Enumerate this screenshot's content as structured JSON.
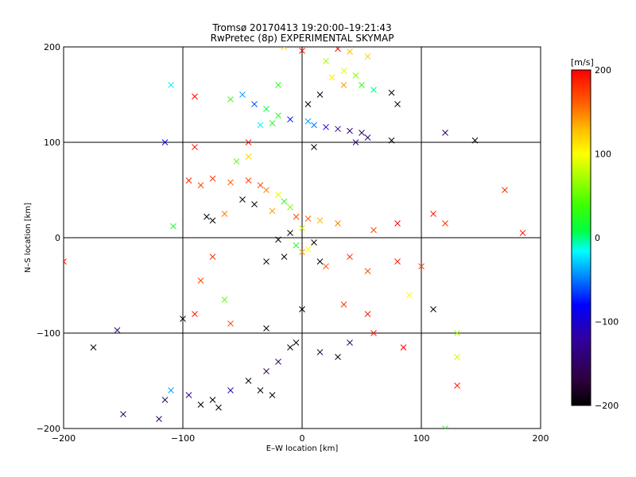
{
  "chart_data": {
    "type": "scatter",
    "title": "Tromsø 20170413 19:20:00–19:21:43",
    "subtitle": "RwPretec (8p) EXPERIMENTAL SKYMAP",
    "xlabel": "E–W location [km]",
    "ylabel": "N–S location [km]",
    "xlim": [
      -200,
      200
    ],
    "ylim": [
      -200,
      200
    ],
    "x_ticks": [
      -200,
      -100,
      0,
      100,
      200
    ],
    "y_ticks": [
      -200,
      -100,
      0,
      100,
      200
    ],
    "grid": true,
    "colorbar": {
      "label": "[m/s]",
      "min": -200,
      "max": 200,
      "ticks": [
        200,
        100,
        0,
        -100,
        -200
      ]
    },
    "points": [
      {
        "x": -15,
        "y": 200,
        "v": 120
      },
      {
        "x": 0,
        "y": 196,
        "v": 200
      },
      {
        "x": 30,
        "y": 198,
        "v": 200
      },
      {
        "x": 40,
        "y": 195,
        "v": 130
      },
      {
        "x": 55,
        "y": 190,
        "v": 120
      },
      {
        "x": 20,
        "y": 185,
        "v": 70
      },
      {
        "x": 35,
        "y": 175,
        "v": 90
      },
      {
        "x": 45,
        "y": 170,
        "v": 60
      },
      {
        "x": 25,
        "y": 168,
        "v": 110
      },
      {
        "x": 50,
        "y": 160,
        "v": 30
      },
      {
        "x": 60,
        "y": 155,
        "v": 0
      },
      {
        "x": 75,
        "y": 152,
        "v": -200
      },
      {
        "x": 80,
        "y": 140,
        "v": -200
      },
      {
        "x": -50,
        "y": 150,
        "v": -40
      },
      {
        "x": -60,
        "y": 145,
        "v": 40
      },
      {
        "x": -40,
        "y": 140,
        "v": -60
      },
      {
        "x": -30,
        "y": 135,
        "v": 10
      },
      {
        "x": -20,
        "y": 128,
        "v": 30
      },
      {
        "x": -10,
        "y": 124,
        "v": -80
      },
      {
        "x": 5,
        "y": 122,
        "v": -40
      },
      {
        "x": 10,
        "y": 118,
        "v": -50
      },
      {
        "x": 20,
        "y": 116,
        "v": -90
      },
      {
        "x": 30,
        "y": 114,
        "v": -130
      },
      {
        "x": 40,
        "y": 112,
        "v": -140
      },
      {
        "x": 50,
        "y": 110,
        "v": -150
      },
      {
        "x": 55,
        "y": 105,
        "v": -140
      },
      {
        "x": 45,
        "y": 100,
        "v": -130
      },
      {
        "x": -25,
        "y": 120,
        "v": 20
      },
      {
        "x": -35,
        "y": 118,
        "v": -20
      },
      {
        "x": 75,
        "y": 102,
        "v": -200
      },
      {
        "x": -95,
        "y": 60,
        "v": 190
      },
      {
        "x": -85,
        "y": 55,
        "v": 170
      },
      {
        "x": -75,
        "y": 62,
        "v": 180
      },
      {
        "x": -60,
        "y": 58,
        "v": 160
      },
      {
        "x": -45,
        "y": 60,
        "v": 175
      },
      {
        "x": -35,
        "y": 55,
        "v": 170
      },
      {
        "x": -30,
        "y": 50,
        "v": 150
      },
      {
        "x": -20,
        "y": 45,
        "v": 90
      },
      {
        "x": -15,
        "y": 38,
        "v": 30
      },
      {
        "x": -10,
        "y": 32,
        "v": 60
      },
      {
        "x": -25,
        "y": 28,
        "v": 140
      },
      {
        "x": -40,
        "y": 35,
        "v": -200
      },
      {
        "x": -50,
        "y": 40,
        "v": -200
      },
      {
        "x": -80,
        "y": 22,
        "v": -200
      },
      {
        "x": -75,
        "y": 18,
        "v": -200
      },
      {
        "x": -65,
        "y": 25,
        "v": 150
      },
      {
        "x": -45,
        "y": 85,
        "v": 120
      },
      {
        "x": -55,
        "y": 80,
        "v": 50
      },
      {
        "x": -5,
        "y": 22,
        "v": 170
      },
      {
        "x": 5,
        "y": 20,
        "v": 160
      },
      {
        "x": 15,
        "y": 18,
        "v": 130
      },
      {
        "x": 0,
        "y": 10,
        "v": 80
      },
      {
        "x": -10,
        "y": 5,
        "v": -200
      },
      {
        "x": -20,
        "y": -2,
        "v": -200
      },
      {
        "x": -5,
        "y": -8,
        "v": 20
      },
      {
        "x": 5,
        "y": -12,
        "v": 100
      },
      {
        "x": 10,
        "y": -5,
        "v": -200
      },
      {
        "x": 0,
        "y": -15,
        "v": 140
      },
      {
        "x": -15,
        "y": -20,
        "v": -200
      },
      {
        "x": 15,
        "y": -25,
        "v": -200
      },
      {
        "x": 20,
        "y": -30,
        "v": 160
      },
      {
        "x": -30,
        "y": -25,
        "v": -200
      },
      {
        "x": 40,
        "y": -20,
        "v": 180
      },
      {
        "x": 55,
        "y": -35,
        "v": 170
      },
      {
        "x": 80,
        "y": -25,
        "v": 190
      },
      {
        "x": 100,
        "y": -30,
        "v": 170
      },
      {
        "x": 110,
        "y": 25,
        "v": 190
      },
      {
        "x": 120,
        "y": 15,
        "v": 180
      },
      {
        "x": 80,
        "y": 15,
        "v": 200
      },
      {
        "x": 30,
        "y": 15,
        "v": 150
      },
      {
        "x": 60,
        "y": 8,
        "v": 170
      },
      {
        "x": -75,
        "y": -20,
        "v": 180
      },
      {
        "x": -85,
        "y": -45,
        "v": 170
      },
      {
        "x": -65,
        "y": -65,
        "v": 50
      },
      {
        "x": -90,
        "y": -80,
        "v": 190
      },
      {
        "x": -100,
        "y": -85,
        "v": -200
      },
      {
        "x": -60,
        "y": -90,
        "v": 170
      },
      {
        "x": -30,
        "y": -95,
        "v": -200
      },
      {
        "x": 0,
        "y": -75,
        "v": -200
      },
      {
        "x": 35,
        "y": -70,
        "v": 180
      },
      {
        "x": 55,
        "y": -80,
        "v": 190
      },
      {
        "x": 90,
        "y": -60,
        "v": 100
      },
      {
        "x": 110,
        "y": -75,
        "v": -200
      },
      {
        "x": 130,
        "y": -100,
        "v": 70
      },
      {
        "x": 130,
        "y": -125,
        "v": 80
      },
      {
        "x": 130,
        "y": -155,
        "v": 190
      },
      {
        "x": 85,
        "y": -115,
        "v": 200
      },
      {
        "x": 60,
        "y": -100,
        "v": 190
      },
      {
        "x": 40,
        "y": -110,
        "v": -140
      },
      {
        "x": 30,
        "y": -125,
        "v": -200
      },
      {
        "x": 15,
        "y": -120,
        "v": -160
      },
      {
        "x": -5,
        "y": -110,
        "v": -200
      },
      {
        "x": -10,
        "y": -115,
        "v": -200
      },
      {
        "x": -20,
        "y": -130,
        "v": -150
      },
      {
        "x": -30,
        "y": -140,
        "v": -160
      },
      {
        "x": -35,
        "y": -160,
        "v": -200
      },
      {
        "x": -45,
        "y": -150,
        "v": -200
      },
      {
        "x": -60,
        "y": -160,
        "v": -120
      },
      {
        "x": -75,
        "y": -170,
        "v": -200
      },
      {
        "x": -85,
        "y": -175,
        "v": -200
      },
      {
        "x": -95,
        "y": -165,
        "v": -130
      },
      {
        "x": -110,
        "y": -160,
        "v": -40
      },
      {
        "x": -115,
        "y": -170,
        "v": -150
      },
      {
        "x": -120,
        "y": -190,
        "v": -150
      },
      {
        "x": -150,
        "y": -185,
        "v": -140
      },
      {
        "x": -155,
        "y": -97,
        "v": -140
      },
      {
        "x": -200,
        "y": -25,
        "v": 190
      },
      {
        "x": -108,
        "y": 12,
        "v": 20
      },
      {
        "x": -25,
        "y": -165,
        "v": -200
      },
      {
        "x": -70,
        "y": -178,
        "v": -200
      },
      {
        "x": -110,
        "y": 160,
        "v": -20
      },
      {
        "x": -90,
        "y": 148,
        "v": 200
      },
      {
        "x": -115,
        "y": 100,
        "v": -80
      },
      {
        "x": 145,
        "y": 102,
        "v": -200
      },
      {
        "x": 120,
        "y": 110,
        "v": -150
      },
      {
        "x": 170,
        "y": 50,
        "v": 180
      },
      {
        "x": 185,
        "y": 5,
        "v": 190
      },
      {
        "x": 120,
        "y": -200,
        "v": 30
      },
      {
        "x": -175,
        "y": -115,
        "v": -200
      },
      {
        "x": 5,
        "y": 140,
        "v": -200
      },
      {
        "x": 15,
        "y": 150,
        "v": -200
      },
      {
        "x": 10,
        "y": 95,
        "v": -200
      },
      {
        "x": -45,
        "y": 100,
        "v": 190
      },
      {
        "x": -90,
        "y": 95,
        "v": 190
      },
      {
        "x": 35,
        "y": 160,
        "v": 140
      },
      {
        "x": -20,
        "y": 160,
        "v": 30
      }
    ]
  },
  "colors": {
    "grid": "#000000",
    "colormap": [
      "#000000",
      "#300040",
      "#3000a0",
      "#0000ff",
      "#00a0ff",
      "#00ffff",
      "#00ff40",
      "#40ff00",
      "#c0ff00",
      "#ffff00",
      "#ffc000",
      "#ff6000",
      "#ff0000"
    ]
  }
}
